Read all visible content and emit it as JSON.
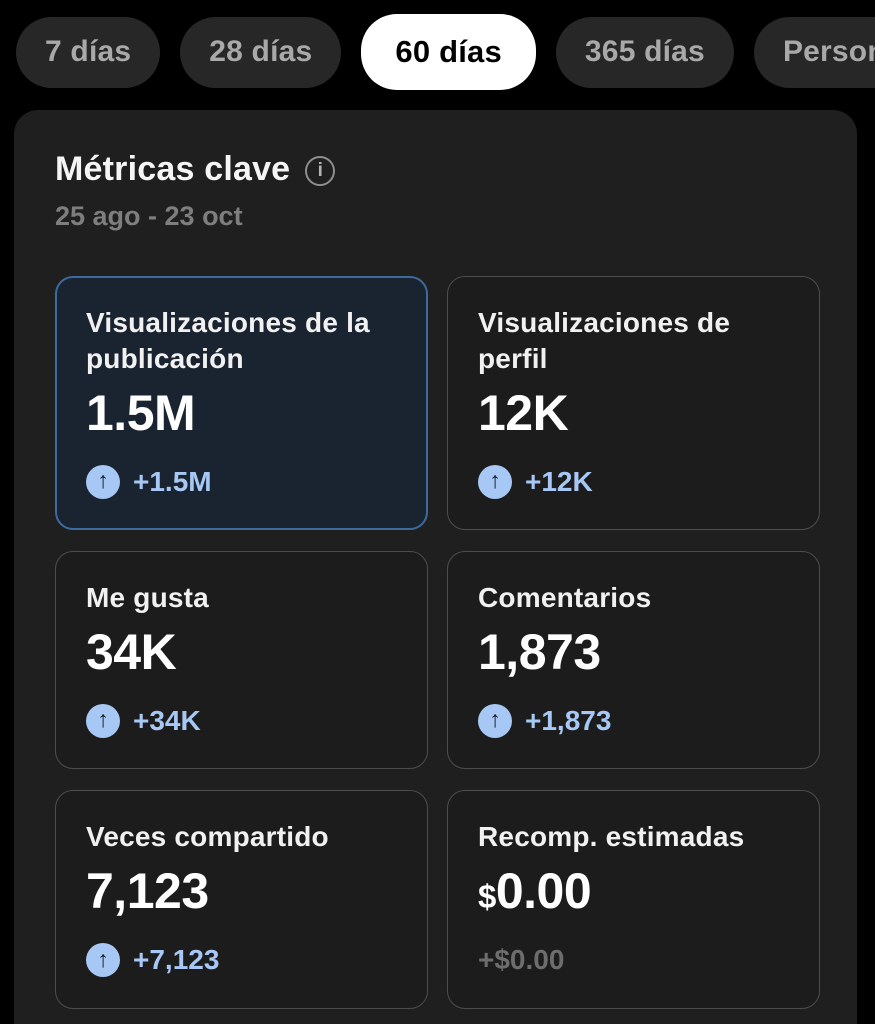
{
  "filter_bar": {
    "items": [
      {
        "label": "7 días",
        "selected": false
      },
      {
        "label": "28 días",
        "selected": false
      },
      {
        "label": "60 días",
        "selected": true
      },
      {
        "label": "365 días",
        "selected": false
      },
      {
        "label": "Personalizado",
        "selected": false
      }
    ]
  },
  "metrics_panel": {
    "title": "Métricas clave",
    "date_range": "25 ago - 23 oct",
    "icons": {
      "info": "i",
      "trend_up": "↑"
    },
    "cards": [
      {
        "title": "Visualizaciones de la publicación",
        "value_prefix": "",
        "value": "1.5M",
        "delta": "+1.5M",
        "trend": "up",
        "selected": true
      },
      {
        "title": "Visualizaciones de perfil",
        "value_prefix": "",
        "value": "12K",
        "delta": "+12K",
        "trend": "up",
        "selected": false
      },
      {
        "title": "Me gusta",
        "value_prefix": "",
        "value": "34K",
        "delta": "+34K",
        "trend": "up",
        "selected": false
      },
      {
        "title": "Comentarios",
        "value_prefix": "",
        "value": "1,873",
        "delta": "+1,873",
        "trend": "up",
        "selected": false
      },
      {
        "title": "Veces compartido",
        "value_prefix": "",
        "value": "7,123",
        "delta": "+7,123",
        "trend": "up",
        "selected": false
      },
      {
        "title": "Recomp. estimadas",
        "value_prefix": "$",
        "value": "0.00",
        "delta": "+$0.00",
        "trend": "neutral",
        "selected": false
      }
    ]
  },
  "colors": {
    "page_background": "#000000",
    "panel_background": "#1f1f1f",
    "card_background": "#1c1c1c",
    "card_border": "#4d4d4d",
    "selected_card_background": "#1a2330",
    "selected_card_border": "#3d6a9d",
    "accent_blue": "#a7c8f5",
    "muted_gray": "#6d6d6d",
    "pill_background": "#272727",
    "pill_active_background": "#ffffff"
  }
}
